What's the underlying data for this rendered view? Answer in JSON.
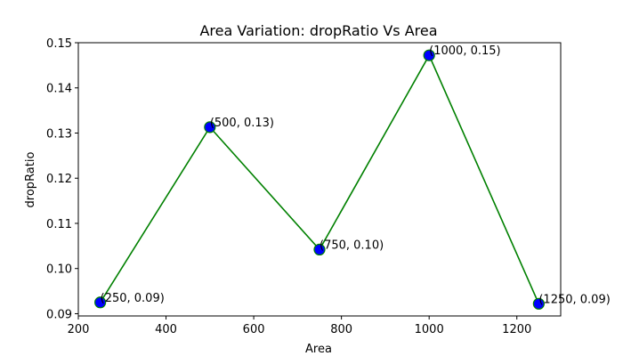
{
  "chart_data": {
    "type": "line",
    "title": "Area Variation: dropRatio Vs Area",
    "xlabel": "Area",
    "ylabel": "dropRatio",
    "xlim": [
      200,
      1300
    ],
    "ylim": [
      0.0895,
      0.15
    ],
    "xticks": [
      200,
      400,
      600,
      800,
      1000,
      1200
    ],
    "xtick_labels": [
      "200",
      "400",
      "600",
      "800",
      "1000",
      "1200"
    ],
    "yticks": [
      0.09,
      0.1,
      0.11,
      0.12,
      0.13,
      0.14,
      0.15
    ],
    "ytick_labels": [
      "0.09",
      "0.10",
      "0.11",
      "0.12",
      "0.13",
      "0.14",
      "0.15"
    ],
    "grid": false,
    "colors": {
      "line": "#008000",
      "marker_face": "#0000ff",
      "marker_edge": "#008000",
      "axes": "#000000"
    },
    "series": [
      {
        "x": [
          250,
          500,
          750,
          1000,
          1250
        ],
        "values": [
          0.0925,
          0.1313,
          0.1042,
          0.1472,
          0.0922
        ],
        "labels": [
          "(250, 0.09)",
          "(500, 0.13)",
          "(750, 0.10)",
          "(1000, 0.15)",
          "(1250, 0.09)"
        ]
      }
    ]
  }
}
